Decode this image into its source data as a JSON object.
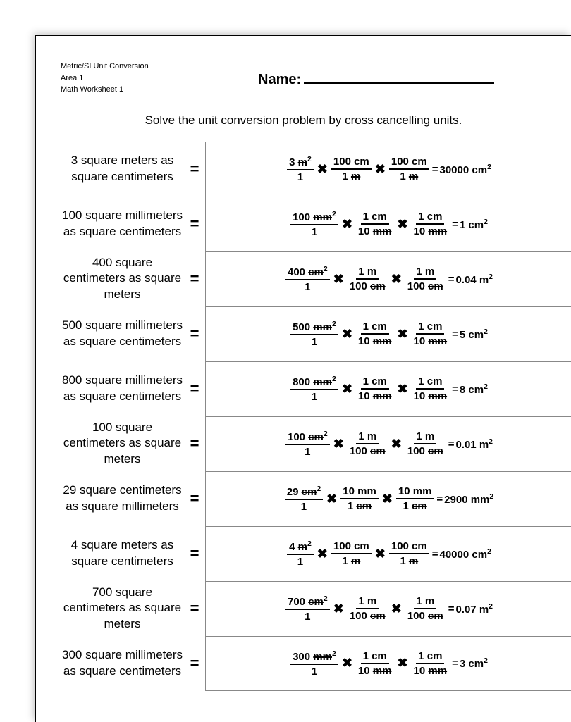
{
  "meta": {
    "line1": "Metric/SI Unit Conversion",
    "line2": "Area 1",
    "line3": "Math Worksheet 1"
  },
  "name_label": "Name:",
  "instructions": "Solve the unit conversion problem by cross cancelling units.",
  "problems": [
    {
      "label": "3 square meters as square centimeters",
      "f1_num_val": "3",
      "f1_num_unit": "m",
      "f1_num_sup": "2",
      "f1_den": "1",
      "f2_num_val": "100",
      "f2_num_unit": "cm",
      "f2_den_val": "1",
      "f2_den_unit": "m",
      "f3_num_val": "100",
      "f3_num_unit": "cm",
      "f3_den_val": "1",
      "f3_den_unit": "m",
      "result_val": "30000",
      "result_unit": "cm",
      "result_sup": "2"
    },
    {
      "label": "100 square millimeters as square centimeters",
      "f1_num_val": "100",
      "f1_num_unit": "mm",
      "f1_num_sup": "2",
      "f1_den": "1",
      "f2_num_val": "1",
      "f2_num_unit": "cm",
      "f2_den_val": "10",
      "f2_den_unit": "mm",
      "f3_num_val": "1",
      "f3_num_unit": "cm",
      "f3_den_val": "10",
      "f3_den_unit": "mm",
      "result_val": "1",
      "result_unit": "cm",
      "result_sup": "2"
    },
    {
      "label": "400 square centimeters as square meters",
      "f1_num_val": "400",
      "f1_num_unit": "cm",
      "f1_num_sup": "2",
      "f1_den": "1",
      "f2_num_val": "1",
      "f2_num_unit": "m",
      "f2_den_val": "100",
      "f2_den_unit": "cm",
      "f3_num_val": "1",
      "f3_num_unit": "m",
      "f3_den_val": "100",
      "f3_den_unit": "cm",
      "result_val": "0.04",
      "result_unit": "m",
      "result_sup": "2"
    },
    {
      "label": "500 square millimeters as square centimeters",
      "f1_num_val": "500",
      "f1_num_unit": "mm",
      "f1_num_sup": "2",
      "f1_den": "1",
      "f2_num_val": "1",
      "f2_num_unit": "cm",
      "f2_den_val": "10",
      "f2_den_unit": "mm",
      "f3_num_val": "1",
      "f3_num_unit": "cm",
      "f3_den_val": "10",
      "f3_den_unit": "mm",
      "result_val": "5",
      "result_unit": "cm",
      "result_sup": "2"
    },
    {
      "label": "800 square millimeters as square centimeters",
      "f1_num_val": "800",
      "f1_num_unit": "mm",
      "f1_num_sup": "2",
      "f1_den": "1",
      "f2_num_val": "1",
      "f2_num_unit": "cm",
      "f2_den_val": "10",
      "f2_den_unit": "mm",
      "f3_num_val": "1",
      "f3_num_unit": "cm",
      "f3_den_val": "10",
      "f3_den_unit": "mm",
      "result_val": "8",
      "result_unit": "cm",
      "result_sup": "2"
    },
    {
      "label": "100 square centimeters as square meters",
      "f1_num_val": "100",
      "f1_num_unit": "cm",
      "f1_num_sup": "2",
      "f1_den": "1",
      "f2_num_val": "1",
      "f2_num_unit": "m",
      "f2_den_val": "100",
      "f2_den_unit": "cm",
      "f3_num_val": "1",
      "f3_num_unit": "m",
      "f3_den_val": "100",
      "f3_den_unit": "cm",
      "result_val": "0.01",
      "result_unit": "m",
      "result_sup": "2"
    },
    {
      "label": "29 square centimeters as square millimeters",
      "f1_num_val": "29",
      "f1_num_unit": "cm",
      "f1_num_sup": "2",
      "f1_den": "1",
      "f2_num_val": "10",
      "f2_num_unit": "mm",
      "f2_den_val": "1",
      "f2_den_unit": "cm",
      "f3_num_val": "10",
      "f3_num_unit": "mm",
      "f3_den_val": "1",
      "f3_den_unit": "cm",
      "result_val": "2900",
      "result_unit": "mm",
      "result_sup": "2"
    },
    {
      "label": "4 square meters as square centimeters",
      "f1_num_val": "4",
      "f1_num_unit": "m",
      "f1_num_sup": "2",
      "f1_den": "1",
      "f2_num_val": "100",
      "f2_num_unit": "cm",
      "f2_den_val": "1",
      "f2_den_unit": "m",
      "f3_num_val": "100",
      "f3_num_unit": "cm",
      "f3_den_val": "1",
      "f3_den_unit": "m",
      "result_val": "40000",
      "result_unit": "cm",
      "result_sup": "2"
    },
    {
      "label": "700 square centimeters as square meters",
      "f1_num_val": "700",
      "f1_num_unit": "cm",
      "f1_num_sup": "2",
      "f1_den": "1",
      "f2_num_val": "1",
      "f2_num_unit": "m",
      "f2_den_val": "100",
      "f2_den_unit": "cm",
      "f3_num_val": "1",
      "f3_num_unit": "m",
      "f3_den_val": "100",
      "f3_den_unit": "cm",
      "result_val": "0.07",
      "result_unit": "m",
      "result_sup": "2"
    },
    {
      "label": "300 square millimeters as square centimeters",
      "f1_num_val": "300",
      "f1_num_unit": "mm",
      "f1_num_sup": "2",
      "f1_den": "1",
      "f2_num_val": "1",
      "f2_num_unit": "cm",
      "f2_den_val": "10",
      "f2_den_unit": "mm",
      "f3_num_val": "1",
      "f3_num_unit": "cm",
      "f3_den_val": "10",
      "f3_den_unit": "mm",
      "result_val": "3",
      "result_unit": "cm",
      "result_sup": "2"
    }
  ]
}
